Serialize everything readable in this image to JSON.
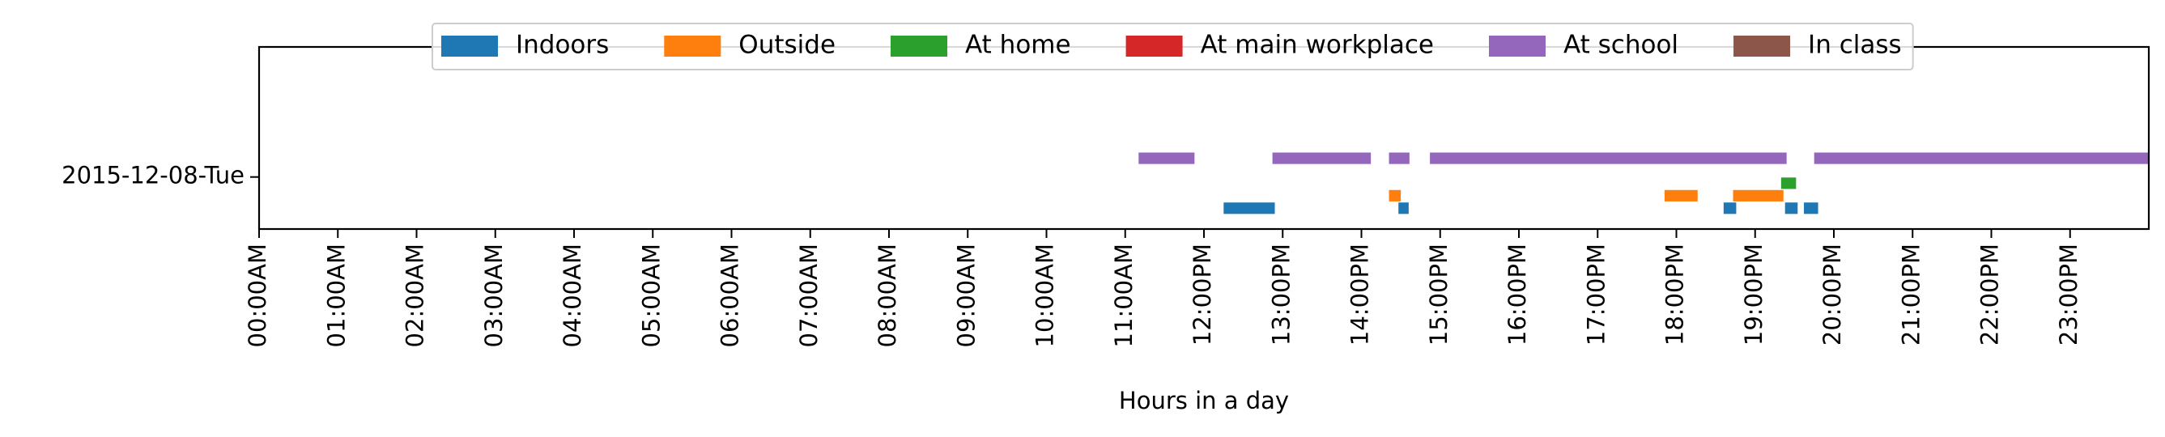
{
  "chart_data": {
    "type": "timeline",
    "title": "",
    "xlabel": "Hours in a day",
    "ylabel": "",
    "xlim": [
      0,
      24
    ],
    "x_ticks": [
      {
        "value": 0,
        "label": "00:00AM"
      },
      {
        "value": 1,
        "label": "01:00AM"
      },
      {
        "value": 2,
        "label": "02:00AM"
      },
      {
        "value": 3,
        "label": "03:00AM"
      },
      {
        "value": 4,
        "label": "04:00AM"
      },
      {
        "value": 5,
        "label": "05:00AM"
      },
      {
        "value": 6,
        "label": "06:00AM"
      },
      {
        "value": 7,
        "label": "07:00AM"
      },
      {
        "value": 8,
        "label": "08:00AM"
      },
      {
        "value": 9,
        "label": "09:00AM"
      },
      {
        "value": 10,
        "label": "10:00AM"
      },
      {
        "value": 11,
        "label": "11:00AM"
      },
      {
        "value": 12,
        "label": "12:00PM"
      },
      {
        "value": 13,
        "label": "13:00PM"
      },
      {
        "value": 14,
        "label": "14:00PM"
      },
      {
        "value": 15,
        "label": "15:00PM"
      },
      {
        "value": 16,
        "label": "16:00PM"
      },
      {
        "value": 17,
        "label": "17:00PM"
      },
      {
        "value": 18,
        "label": "18:00PM"
      },
      {
        "value": 19,
        "label": "19:00PM"
      },
      {
        "value": 20,
        "label": "20:00PM"
      },
      {
        "value": 21,
        "label": "21:00PM"
      },
      {
        "value": 22,
        "label": "22:00PM"
      },
      {
        "value": 23,
        "label": "23:00PM"
      }
    ],
    "y_ticks": [
      {
        "value": 0,
        "label": "2015-12-08-Tue"
      }
    ],
    "ylim": [
      -1,
      2.5
    ],
    "legend_position": "top-center",
    "series": [
      {
        "name": "Indoors",
        "color": "#1f77b4",
        "row": -0.6,
        "intervals": [
          [
            12.25,
            12.9
          ],
          [
            14.47,
            14.6
          ],
          [
            18.6,
            18.76
          ],
          [
            19.38,
            19.54
          ],
          [
            19.62,
            19.8
          ]
        ]
      },
      {
        "name": "Outside",
        "color": "#ff7f0e",
        "row": -0.36,
        "intervals": [
          [
            14.35,
            14.5
          ],
          [
            17.85,
            18.27
          ],
          [
            18.72,
            19.36
          ]
        ]
      },
      {
        "name": "At home",
        "color": "#2ca02c",
        "row": -0.12,
        "intervals": [
          [
            19.33,
            19.52
          ]
        ]
      },
      {
        "name": "At main workplace",
        "color": "#d62728",
        "row": 0.12,
        "intervals": []
      },
      {
        "name": "At school",
        "color": "#9467bd",
        "row": 0.36,
        "intervals": [
          [
            11.17,
            11.88
          ],
          [
            12.87,
            14.12
          ],
          [
            14.35,
            14.61
          ],
          [
            14.87,
            19.4
          ],
          [
            19.75,
            24
          ]
        ]
      },
      {
        "name": "In class",
        "color": "#8c564b",
        "row": 0.6,
        "intervals": []
      }
    ]
  }
}
